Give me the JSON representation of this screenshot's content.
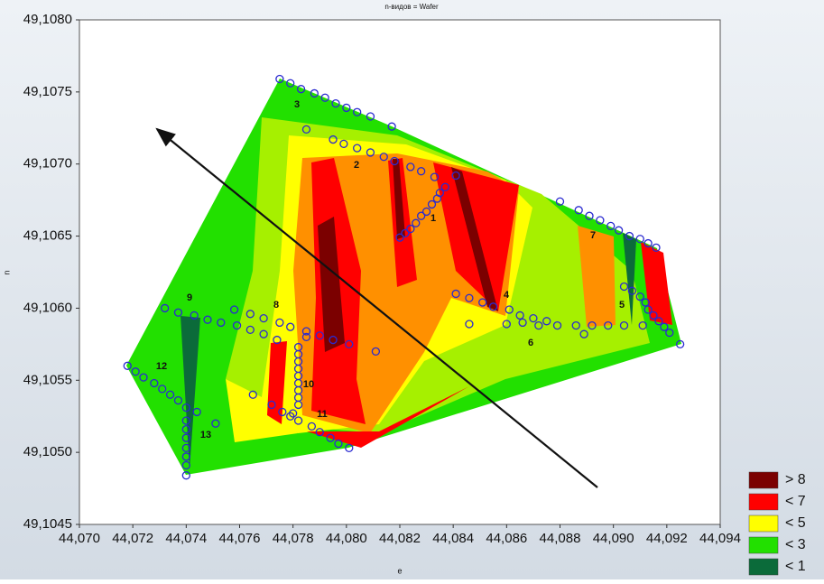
{
  "chart_data": {
    "type": "contour",
    "title": "n-видов = Wafer",
    "x_label": "e",
    "y_label": "n",
    "xlim": [
      44.07,
      44.094
    ],
    "xticks": [
      {
        "value": 44.07,
        "label": "44,070"
      },
      {
        "value": 44.072,
        "label": "44,072"
      },
      {
        "value": 44.074,
        "label": "44,074"
      },
      {
        "value": 44.076,
        "label": "44,076"
      },
      {
        "value": 44.078,
        "label": "44,078"
      },
      {
        "value": 44.08,
        "label": "44,080"
      },
      {
        "value": 44.082,
        "label": "44,082"
      },
      {
        "value": 44.084,
        "label": "44,084"
      },
      {
        "value": 44.086,
        "label": "44,086"
      },
      {
        "value": 44.088,
        "label": "44,088"
      },
      {
        "value": 44.09,
        "label": "44,090"
      },
      {
        "value": 44.092,
        "label": "44,092"
      },
      {
        "value": 44.094,
        "label": "44,094"
      }
    ],
    "ylim": [
      49.1045,
      49.108
    ],
    "yticks": [
      {
        "value": 49.1045,
        "label": "49,1045"
      },
      {
        "value": 49.105,
        "label": "49,1050"
      },
      {
        "value": 49.1055,
        "label": "49,1055"
      },
      {
        "value": 49.106,
        "label": "49,1060"
      },
      {
        "value": 49.1065,
        "label": "49,1065"
      },
      {
        "value": 49.107,
        "label": "49,1070"
      },
      {
        "value": 49.1075,
        "label": "49,1075"
      },
      {
        "value": 49.108,
        "label": "49,1080"
      }
    ],
    "grid": false,
    "legend": [
      {
        "label": "> 8",
        "color": "#7b0000"
      },
      {
        "label": "< 7",
        "color": "#ff0000"
      },
      {
        "label": "< 5",
        "color": "#ffff00"
      },
      {
        "label": "< 3",
        "color": "#22e000"
      },
      {
        "label": "< 1",
        "color": "#0b6b3a"
      }
    ],
    "annotations": [
      "1",
      "2",
      "3",
      "4",
      "5",
      "6",
      "7",
      "8",
      "9",
      "10",
      "11",
      "12",
      "13"
    ],
    "points": {
      "color": "#2a2ad0",
      "x": [
        44.0775,
        44.0779,
        44.0783,
        44.0788,
        44.0792,
        44.0796,
        44.08,
        44.0804,
        44.0809,
        44.0785,
        44.0795,
        44.0799,
        44.0804,
        44.0809,
        44.0814,
        44.0817,
        44.0818,
        44.0824,
        44.0828,
        44.0833,
        44.0837,
        44.0835,
        44.0834,
        44.0832,
        44.083,
        44.0828,
        44.0826,
        44.0824,
        44.0822,
        44.082,
        44.0841,
        44.0841,
        44.0846,
        44.0851,
        44.0855,
        44.0861,
        44.0865,
        44.087,
        44.0875,
        44.0879,
        44.0846,
        44.086,
        44.0866,
        44.0872,
        44.0886,
        44.0889,
        44.0892,
        44.0898,
        44.0904,
        44.0911,
        44.088,
        44.0887,
        44.0891,
        44.0895,
        44.0899,
        44.0902,
        44.0906,
        44.091,
        44.0913,
        44.0916,
        44.0904,
        44.0907,
        44.091,
        44.0912,
        44.0913,
        44.0915,
        44.0917,
        44.0919,
        44.0921,
        44.0925,
        44.0732,
        44.0737,
        44.0743,
        44.0748,
        44.0753,
        44.0758,
        44.0764,
        44.0769,
        44.0775,
        44.0779,
        44.0785,
        44.0759,
        44.0764,
        44.0769,
        44.0774,
        44.0785,
        44.079,
        44.0795,
        44.0801,
        44.0811,
        44.0782,
        44.0782,
        44.0782,
        44.0782,
        44.0782,
        44.0782,
        44.0782,
        44.0782,
        44.0782,
        44.078,
        44.0772,
        44.0776,
        44.0779,
        44.0782,
        44.0787,
        44.079,
        44.0794,
        44.0797,
        44.0801,
        44.0765,
        44.0718,
        44.0721,
        44.0724,
        44.0728,
        44.0731,
        44.0734,
        44.0737,
        44.074,
        44.0744,
        44.0751,
        44.074,
        44.074,
        44.074,
        44.074,
        44.074,
        44.074,
        44.074
      ],
      "y": [
        49.10759,
        49.10756,
        49.10752,
        49.10749,
        49.10746,
        49.10742,
        49.10739,
        49.10736,
        49.10733,
        49.10724,
        49.10717,
        49.10714,
        49.10711,
        49.10708,
        49.10705,
        49.10726,
        49.10702,
        49.10698,
        49.10695,
        49.10691,
        49.10684,
        49.1068,
        49.10676,
        49.10672,
        49.10667,
        49.10664,
        49.10659,
        49.10655,
        49.10652,
        49.10649,
        49.10692,
        49.1061,
        49.10607,
        49.10604,
        49.10601,
        49.10599,
        49.10595,
        49.10593,
        49.10591,
        49.10588,
        49.10589,
        49.10589,
        49.1059,
        49.10588,
        49.10588,
        49.10582,
        49.10588,
        49.10588,
        49.10588,
        49.10588,
        49.10674,
        49.10668,
        49.10664,
        49.10661,
        49.10657,
        49.10654,
        49.1065,
        49.10648,
        49.10645,
        49.10642,
        49.10615,
        49.10612,
        49.10608,
        49.10604,
        49.10599,
        49.10595,
        49.10591,
        49.10587,
        49.10583,
        49.10575,
        49.106,
        49.10597,
        49.10595,
        49.10592,
        49.1059,
        49.10599,
        49.10596,
        49.10593,
        49.1059,
        49.10587,
        49.10584,
        49.10588,
        49.10585,
        49.10582,
        49.10578,
        49.1058,
        49.10581,
        49.10578,
        49.10575,
        49.1057,
        49.10573,
        49.10568,
        49.10563,
        49.10558,
        49.10553,
        49.10548,
        49.10543,
        49.10538,
        49.10533,
        49.10527,
        49.10533,
        49.10528,
        49.10525,
        49.10522,
        49.10518,
        49.10514,
        49.1051,
        49.10506,
        49.10503,
        49.1054,
        49.1056,
        49.10556,
        49.10552,
        49.10548,
        49.10544,
        49.1054,
        49.10536,
        49.10531,
        49.10528,
        49.1052,
        49.10522,
        49.10516,
        49.1051,
        49.10503,
        49.10497,
        49.10491,
        49.10484
      ]
    }
  }
}
